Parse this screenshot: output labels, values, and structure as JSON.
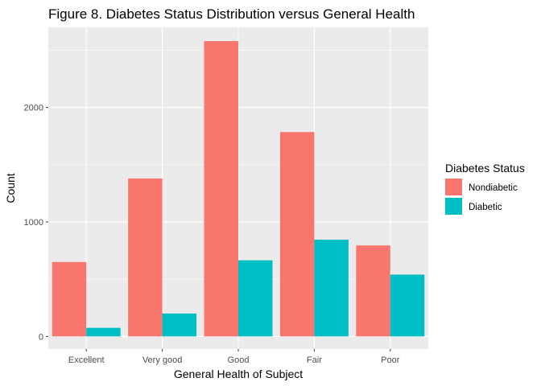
{
  "chart_data": {
    "type": "bar",
    "title": "Figure 8. Diabetes Status Distribution versus General Health",
    "xlabel": "General Health of Subject",
    "ylabel": "Count",
    "categories": [
      "Excellent",
      "Very good",
      "Good",
      "Fair",
      "Poor"
    ],
    "series": [
      {
        "name": "Nondiabetic",
        "color": "#F8766D",
        "values": [
          650,
          1380,
          2580,
          1785,
          795
        ]
      },
      {
        "name": "Diabetic",
        "color": "#00BFC4",
        "values": [
          75,
          200,
          665,
          845,
          540
        ]
      }
    ],
    "ylim": [
      -110,
      2700
    ],
    "yticks": [
      0,
      1000,
      2000
    ],
    "ytick_labels": [
      "0",
      "1000",
      "2000"
    ],
    "grid": true,
    "legend": {
      "title": "Diabetes Status",
      "position": "right"
    }
  }
}
